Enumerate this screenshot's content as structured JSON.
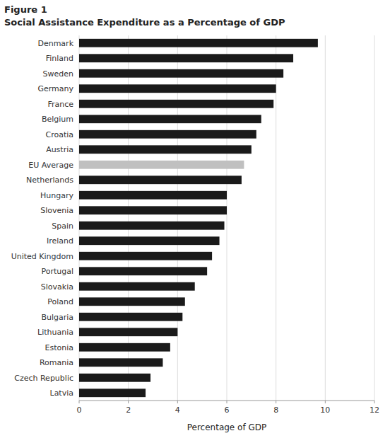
{
  "chart_data": {
    "type": "bar",
    "orientation": "horizontal",
    "title": "Figure 1",
    "subtitle": "Social Assistance Expenditure as a Percentage of GDP",
    "xlabel": "Percentage of GDP",
    "categories": [
      "Denmark",
      "Finland",
      "Sweden",
      "Germany",
      "France",
      "Belgium",
      "Croatia",
      "Austria",
      "EU Average",
      "Netherlands",
      "Hungary",
      "Slovenia",
      "Spain",
      "Ireland",
      "United Kingdom",
      "Portugal",
      "Slovakia",
      "Poland",
      "Bulgaria",
      "Lithuania",
      "Estonia",
      "Romania",
      "Czech Republic",
      "Latvia"
    ],
    "values": [
      9.7,
      8.7,
      8.3,
      8.0,
      7.9,
      7.4,
      7.2,
      7.0,
      6.7,
      6.6,
      6.0,
      6.0,
      5.9,
      5.7,
      5.4,
      5.2,
      4.7,
      4.3,
      4.2,
      4.0,
      3.7,
      3.4,
      2.9,
      2.7
    ],
    "colors": [
      "#1a1a1a",
      "#1a1a1a",
      "#1a1a1a",
      "#1a1a1a",
      "#1a1a1a",
      "#1a1a1a",
      "#1a1a1a",
      "#1a1a1a",
      "#c0c0c0",
      "#1a1a1a",
      "#1a1a1a",
      "#1a1a1a",
      "#1a1a1a",
      "#1a1a1a",
      "#1a1a1a",
      "#1a1a1a",
      "#1a1a1a",
      "#1a1a1a",
      "#1a1a1a",
      "#1a1a1a",
      "#1a1a1a",
      "#1a1a1a",
      "#1a1a1a",
      "#1a1a1a"
    ],
    "xlim": [
      0,
      12
    ],
    "xticks": [
      0,
      2,
      4,
      6,
      8,
      10,
      12
    ],
    "grid": true
  }
}
